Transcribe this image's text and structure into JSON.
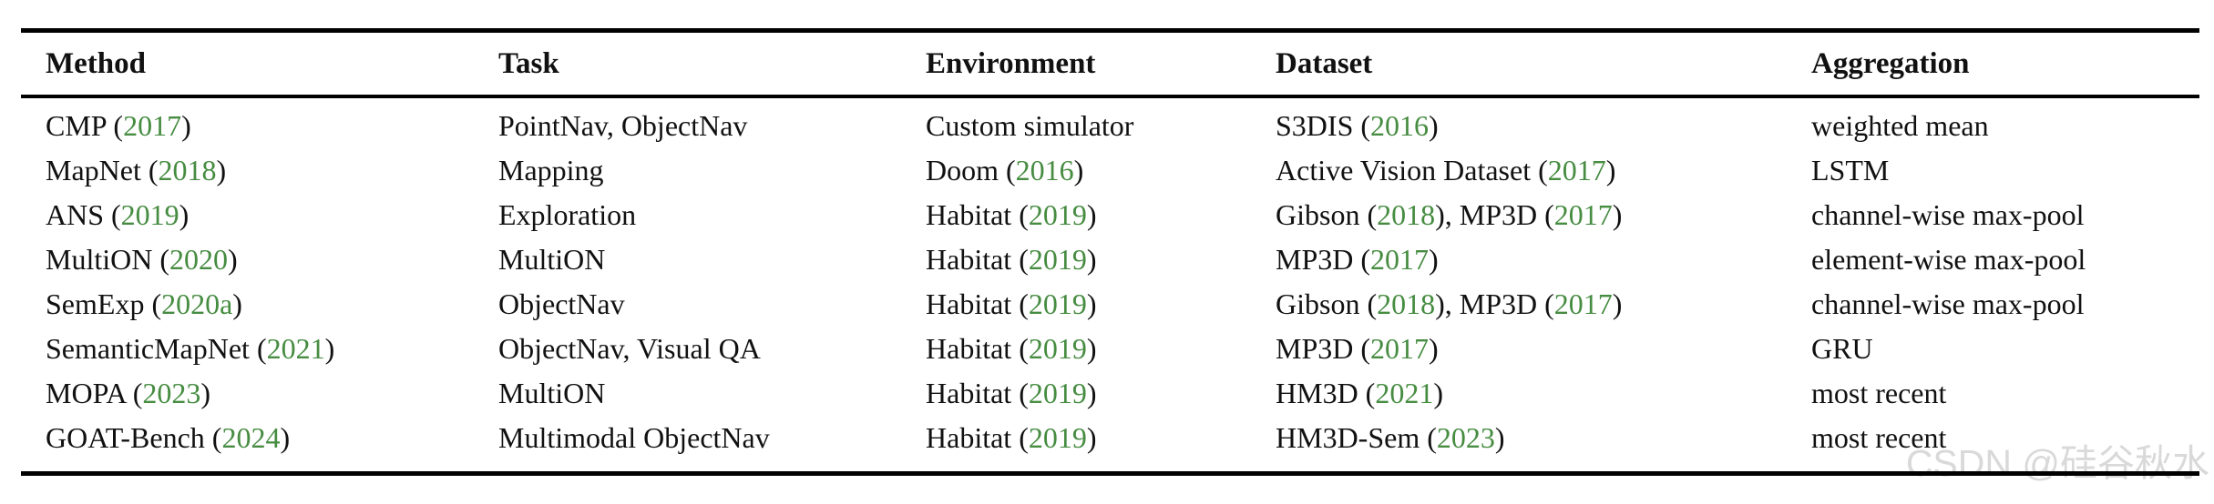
{
  "colors": {
    "text": "#111111",
    "year_green": "#468c41",
    "rule": "#000000",
    "watermark": "#d9d9d9"
  },
  "watermark": {
    "text": "CSDN @硅谷秋水"
  },
  "table": {
    "headers": [
      "Method",
      "Task",
      "Environment",
      "Dataset",
      "Aggregation"
    ],
    "column_keys": [
      "method",
      "task",
      "environment",
      "dataset",
      "aggregation"
    ],
    "rows": [
      {
        "method": [
          [
            "CMP ("
          ],
          [
            "2017",
            "green"
          ],
          [
            ")"
          ]
        ],
        "task": [
          [
            "PointNav, ObjectNav"
          ]
        ],
        "environment": [
          [
            "Custom simulator"
          ]
        ],
        "dataset": [
          [
            "S3DIS ("
          ],
          [
            "2016",
            "green"
          ],
          [
            ")"
          ]
        ],
        "aggregation": [
          [
            "weighted mean"
          ]
        ]
      },
      {
        "method": [
          [
            "MapNet ("
          ],
          [
            "2018",
            "green"
          ],
          [
            ")"
          ]
        ],
        "task": [
          [
            "Mapping"
          ]
        ],
        "environment": [
          [
            "Doom ("
          ],
          [
            "2016",
            "green"
          ],
          [
            ")"
          ]
        ],
        "dataset": [
          [
            "Active Vision Dataset ("
          ],
          [
            "2017",
            "green"
          ],
          [
            ")"
          ]
        ],
        "aggregation": [
          [
            "LSTM"
          ]
        ]
      },
      {
        "method": [
          [
            "ANS ("
          ],
          [
            "2019",
            "green"
          ],
          [
            ")"
          ]
        ],
        "task": [
          [
            "Exploration"
          ]
        ],
        "environment": [
          [
            "Habitat ("
          ],
          [
            "2019",
            "green"
          ],
          [
            ")"
          ]
        ],
        "dataset": [
          [
            "Gibson ("
          ],
          [
            "2018",
            "green"
          ],
          [
            "), MP3D ("
          ],
          [
            "2017",
            "green"
          ],
          [
            ")"
          ]
        ],
        "aggregation": [
          [
            "channel-wise max-pool"
          ]
        ]
      },
      {
        "method": [
          [
            "MultiON ("
          ],
          [
            "2020",
            "green"
          ],
          [
            ")"
          ]
        ],
        "task": [
          [
            "MultiON"
          ]
        ],
        "environment": [
          [
            "Habitat ("
          ],
          [
            "2019",
            "green"
          ],
          [
            ")"
          ]
        ],
        "dataset": [
          [
            "MP3D ("
          ],
          [
            "2017",
            "green"
          ],
          [
            ")"
          ]
        ],
        "aggregation": [
          [
            "element-wise max-pool"
          ]
        ]
      },
      {
        "method": [
          [
            "SemExp ("
          ],
          [
            "2020a",
            "green"
          ],
          [
            ")"
          ]
        ],
        "task": [
          [
            "ObjectNav"
          ]
        ],
        "environment": [
          [
            "Habitat ("
          ],
          [
            "2019",
            "green"
          ],
          [
            ")"
          ]
        ],
        "dataset": [
          [
            "Gibson ("
          ],
          [
            "2018",
            "green"
          ],
          [
            "), MP3D ("
          ],
          [
            "2017",
            "green"
          ],
          [
            ")"
          ]
        ],
        "aggregation": [
          [
            "channel-wise max-pool"
          ]
        ]
      },
      {
        "method": [
          [
            "SemanticMapNet ("
          ],
          [
            "2021",
            "green"
          ],
          [
            ")"
          ]
        ],
        "task": [
          [
            "ObjectNav, Visual QA"
          ]
        ],
        "environment": [
          [
            "Habitat ("
          ],
          [
            "2019",
            "green"
          ],
          [
            ")"
          ]
        ],
        "dataset": [
          [
            "MP3D ("
          ],
          [
            "2017",
            "green"
          ],
          [
            ")"
          ]
        ],
        "aggregation": [
          [
            "GRU"
          ]
        ]
      },
      {
        "method": [
          [
            "MOPA ("
          ],
          [
            "2023",
            "green"
          ],
          [
            ")"
          ]
        ],
        "task": [
          [
            "MultiON"
          ]
        ],
        "environment": [
          [
            "Habitat ("
          ],
          [
            "2019",
            "green"
          ],
          [
            ")"
          ]
        ],
        "dataset": [
          [
            "HM3D ("
          ],
          [
            "2021",
            "green"
          ],
          [
            ")"
          ]
        ],
        "aggregation": [
          [
            "most recent"
          ]
        ]
      },
      {
        "method": [
          [
            "GOAT-Bench ("
          ],
          [
            "2024",
            "green"
          ],
          [
            ")"
          ]
        ],
        "task": [
          [
            "Multimodal ObjectNav"
          ]
        ],
        "environment": [
          [
            "Habitat ("
          ],
          [
            "2019",
            "green"
          ],
          [
            ")"
          ]
        ],
        "dataset": [
          [
            "HM3D-Sem ("
          ],
          [
            "2023",
            "green"
          ],
          [
            ")"
          ]
        ],
        "aggregation": [
          [
            "most recent"
          ]
        ]
      }
    ]
  }
}
